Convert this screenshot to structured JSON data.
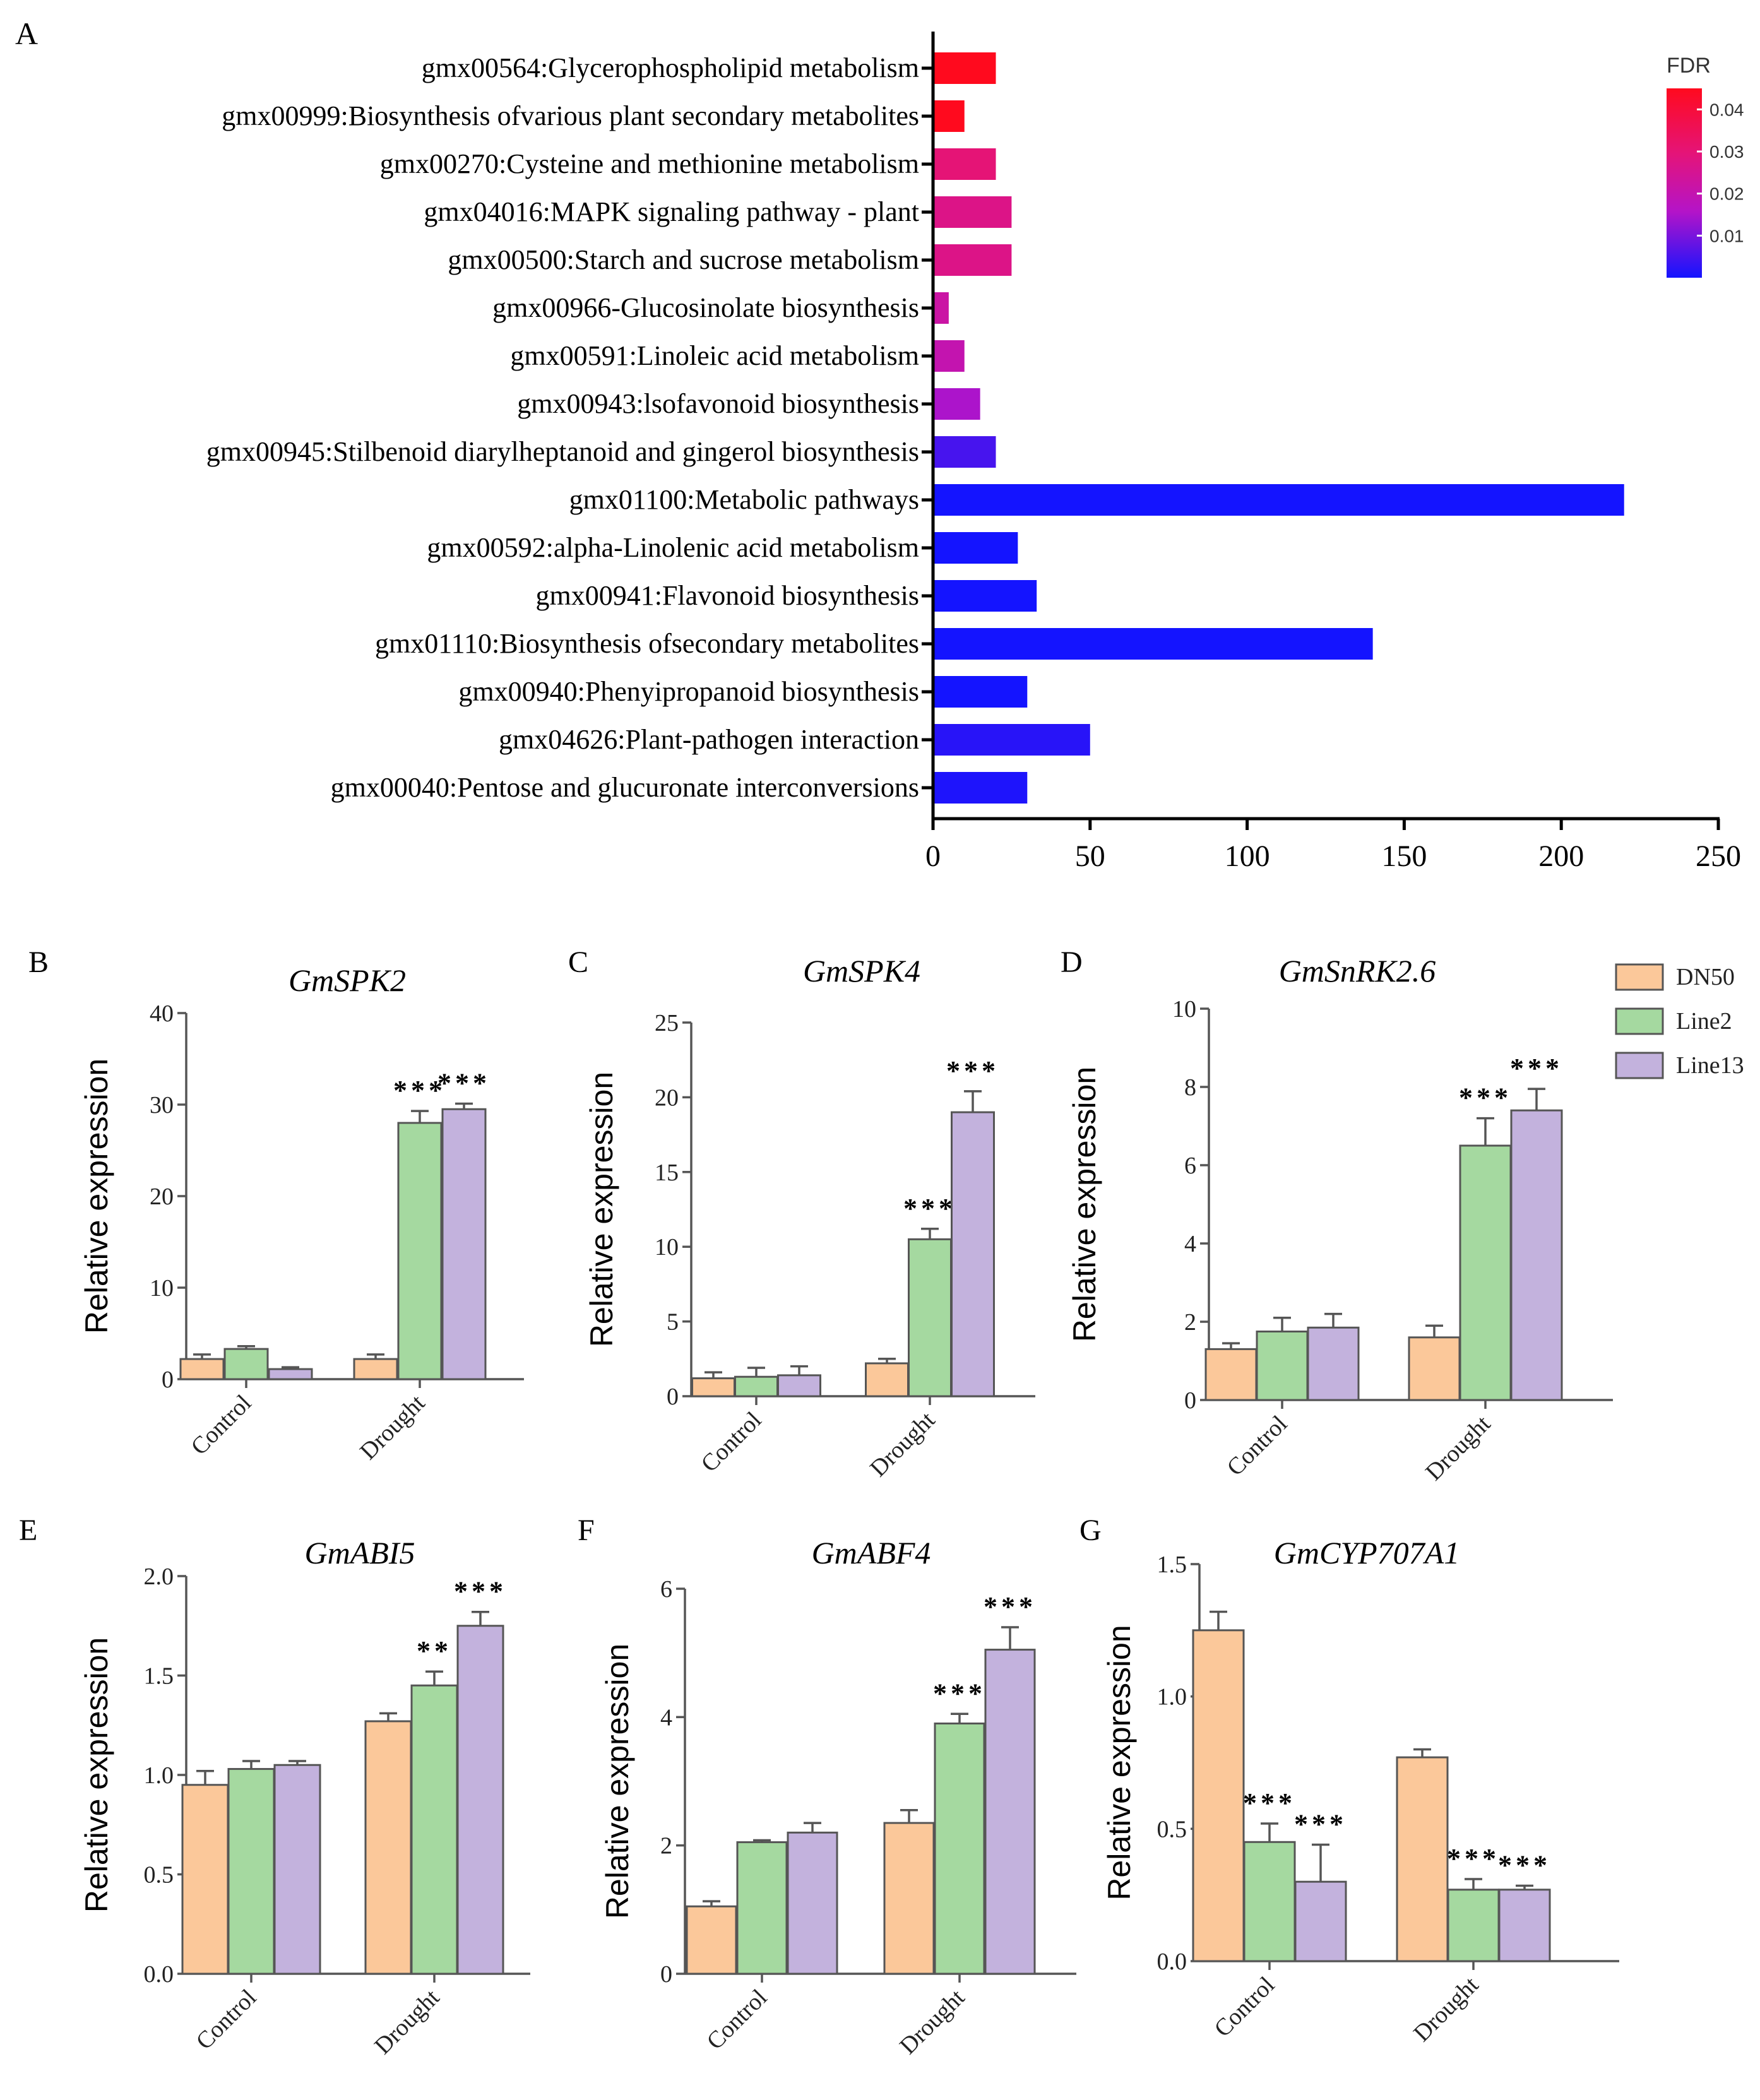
{
  "colors": {
    "dn50": "#fbc89a",
    "line2": "#a5d9a0",
    "line13": "#c3b2dd",
    "bar_stroke": "#555555",
    "fdr_high": "#ff0a1e",
    "fdr_low": "#1414ff"
  },
  "chart_data": [
    {
      "id": "A",
      "panel_label": "A",
      "type": "bar",
      "orientation": "horizontal",
      "title": "",
      "xlabel": "",
      "ylabel": "",
      "xlim": [
        0,
        250
      ],
      "xticks": [
        "0",
        "50",
        "100",
        "150",
        "200",
        "250"
      ],
      "categories": [
        "gmx00564:Glycerophospholipid metabolism",
        "gmx00999:Biosynthesis ofvarious plant secondary metabolites",
        "gmx00270:Cysteine and methionine metabolism",
        "gmx04016:MAPK signaling pathway - plant",
        "gmx00500:Starch and sucrose metabolism",
        "gmx00966-Glucosinolate biosynthesis",
        "gmx00591:Linoleic acid metabolism",
        "gmx00943:lsofavonoid biosynthesis",
        "gmx00945:Stilbenoid diarylheptanoid and gingerol biosynthesis",
        "gmx01100:Metabolic pathways",
        "gmx00592:alpha-Linolenic acid metabolism",
        "gmx00941:Flavonoid biosynthesis",
        "gmx01110:Biosynthesis ofsecondary metabolites",
        "gmx00940:Phenyipropanoid biosynthesis",
        "gmx04626:Plant-pathogen interaction",
        "gmx00040:Pentose and glucuronate interconversions"
      ],
      "values": [
        20,
        10,
        20,
        25,
        25,
        5,
        10,
        15,
        20,
        220,
        27,
        33,
        140,
        30,
        50,
        30
      ],
      "fdr": [
        0.045,
        0.045,
        0.03,
        0.027,
        0.027,
        0.022,
        0.02,
        0.015,
        0.005,
        0.0,
        0.0,
        0.0,
        0.0,
        0.0,
        0.002,
        0.001
      ],
      "colorbar": {
        "title": "FDR",
        "range": [
          0,
          0.045
        ],
        "ticks": [
          "0.04",
          "0.03",
          "0.02",
          "0.01"
        ],
        "tick_values": [
          0.04,
          0.03,
          0.02,
          0.01
        ]
      }
    },
    {
      "id": "B",
      "panel_label": "B",
      "type": "bar",
      "title": "GmSPK2",
      "ylabel": "Relative expression",
      "categories": [
        "Control",
        "Drought"
      ],
      "ylim": [
        0,
        40
      ],
      "yticks": [
        "0",
        "10",
        "20",
        "30",
        "40"
      ],
      "series": [
        {
          "name": "DN50",
          "values": [
            2.2,
            2.2
          ],
          "errors": [
            0.5,
            0.5
          ],
          "sig": [
            "",
            ""
          ]
        },
        {
          "name": "Line2",
          "values": [
            3.3,
            28
          ],
          "errors": [
            0.3,
            1.3
          ],
          "sig": [
            "",
            "***"
          ]
        },
        {
          "name": "Line13",
          "values": [
            1.1,
            29.5
          ],
          "errors": [
            0.2,
            0.6
          ],
          "sig": [
            "",
            "***"
          ]
        }
      ]
    },
    {
      "id": "C",
      "panel_label": "C",
      "type": "bar",
      "title": "GmSPK4",
      "ylabel": "Relative expression",
      "categories": [
        "Control",
        "Drought"
      ],
      "ylim": [
        0,
        25
      ],
      "yticks": [
        "0",
        "5",
        "10",
        "15",
        "20",
        "25"
      ],
      "series": [
        {
          "name": "DN50",
          "values": [
            1.2,
            2.2
          ],
          "errors": [
            0.4,
            0.3
          ],
          "sig": [
            "",
            ""
          ]
        },
        {
          "name": "Line2",
          "values": [
            1.3,
            10.5
          ],
          "errors": [
            0.6,
            0.7
          ],
          "sig": [
            "",
            "***"
          ]
        },
        {
          "name": "Line13",
          "values": [
            1.4,
            19
          ],
          "errors": [
            0.6,
            1.4
          ],
          "sig": [
            "",
            "***"
          ]
        }
      ]
    },
    {
      "id": "D",
      "panel_label": "D",
      "type": "bar",
      "title": "GmSnRK2.6",
      "ylabel": "Relative expression",
      "categories": [
        "Control",
        "Drought"
      ],
      "ylim": [
        0,
        10
      ],
      "yticks": [
        "0",
        "2",
        "4",
        "6",
        "8",
        "10"
      ],
      "series": [
        {
          "name": "DN50",
          "values": [
            1.3,
            1.6
          ],
          "errors": [
            0.15,
            0.3
          ],
          "sig": [
            "",
            ""
          ]
        },
        {
          "name": "Line2",
          "values": [
            1.75,
            6.5
          ],
          "errors": [
            0.35,
            0.7
          ],
          "sig": [
            "",
            "***"
          ]
        },
        {
          "name": "Line13",
          "values": [
            1.85,
            7.4
          ],
          "errors": [
            0.35,
            0.55
          ],
          "sig": [
            "",
            "***"
          ]
        }
      ]
    },
    {
      "id": "E",
      "panel_label": "E",
      "type": "bar",
      "title": "GmABI5",
      "ylabel": "Relative expression",
      "categories": [
        "Control",
        "Drought"
      ],
      "ylim": [
        0,
        2.0
      ],
      "yticks": [
        "0.0",
        "0.5",
        "1.0",
        "1.5",
        "2.0"
      ],
      "series": [
        {
          "name": "DN50",
          "values": [
            0.95,
            1.27
          ],
          "errors": [
            0.07,
            0.04
          ],
          "sig": [
            "",
            ""
          ]
        },
        {
          "name": "Line2",
          "values": [
            1.03,
            1.45
          ],
          "errors": [
            0.04,
            0.07
          ],
          "sig": [
            "",
            "**"
          ]
        },
        {
          "name": "Line13",
          "values": [
            1.05,
            1.75
          ],
          "errors": [
            0.02,
            0.07
          ],
          "sig": [
            "",
            "***"
          ]
        }
      ]
    },
    {
      "id": "F",
      "panel_label": "F",
      "type": "bar",
      "title": "GmABF4",
      "ylabel": "Relative expression",
      "categories": [
        "Control",
        "Drought"
      ],
      "ylim": [
        0,
        6
      ],
      "yticks": [
        "0",
        "2",
        "4",
        "6"
      ],
      "series": [
        {
          "name": "DN50",
          "values": [
            1.05,
            2.35
          ],
          "errors": [
            0.08,
            0.2
          ],
          "sig": [
            "",
            ""
          ]
        },
        {
          "name": "Line2",
          "values": [
            2.05,
            3.9
          ],
          "errors": [
            0.03,
            0.15
          ],
          "sig": [
            "",
            "***"
          ]
        },
        {
          "name": "Line13",
          "values": [
            2.2,
            5.05
          ],
          "errors": [
            0.15,
            0.35
          ],
          "sig": [
            "",
            "***"
          ]
        }
      ]
    },
    {
      "id": "G",
      "panel_label": "G",
      "type": "bar",
      "title": "GmCYP707A1",
      "ylabel": "Relative expression",
      "categories": [
        "Control",
        "Drought"
      ],
      "ylim": [
        0,
        1.5
      ],
      "yticks": [
        "0.0",
        "0.5",
        "1.0",
        "1.5"
      ],
      "series": [
        {
          "name": "DN50",
          "values": [
            1.25,
            0.77
          ],
          "errors": [
            0.07,
            0.03
          ],
          "sig": [
            "",
            ""
          ]
        },
        {
          "name": "Line2",
          "values": [
            0.45,
            0.27
          ],
          "errors": [
            0.07,
            0.04
          ],
          "sig": [
            "***",
            "***"
          ]
        },
        {
          "name": "Line13",
          "values": [
            0.3,
            0.27
          ],
          "errors": [
            0.14,
            0.015
          ],
          "sig": [
            "***",
            "***"
          ]
        }
      ]
    }
  ],
  "legend": {
    "items": [
      {
        "label": "DN50",
        "color_key": "dn50"
      },
      {
        "label": "Line2",
        "color_key": "line2"
      },
      {
        "label": "Line13",
        "color_key": "line13"
      }
    ]
  }
}
